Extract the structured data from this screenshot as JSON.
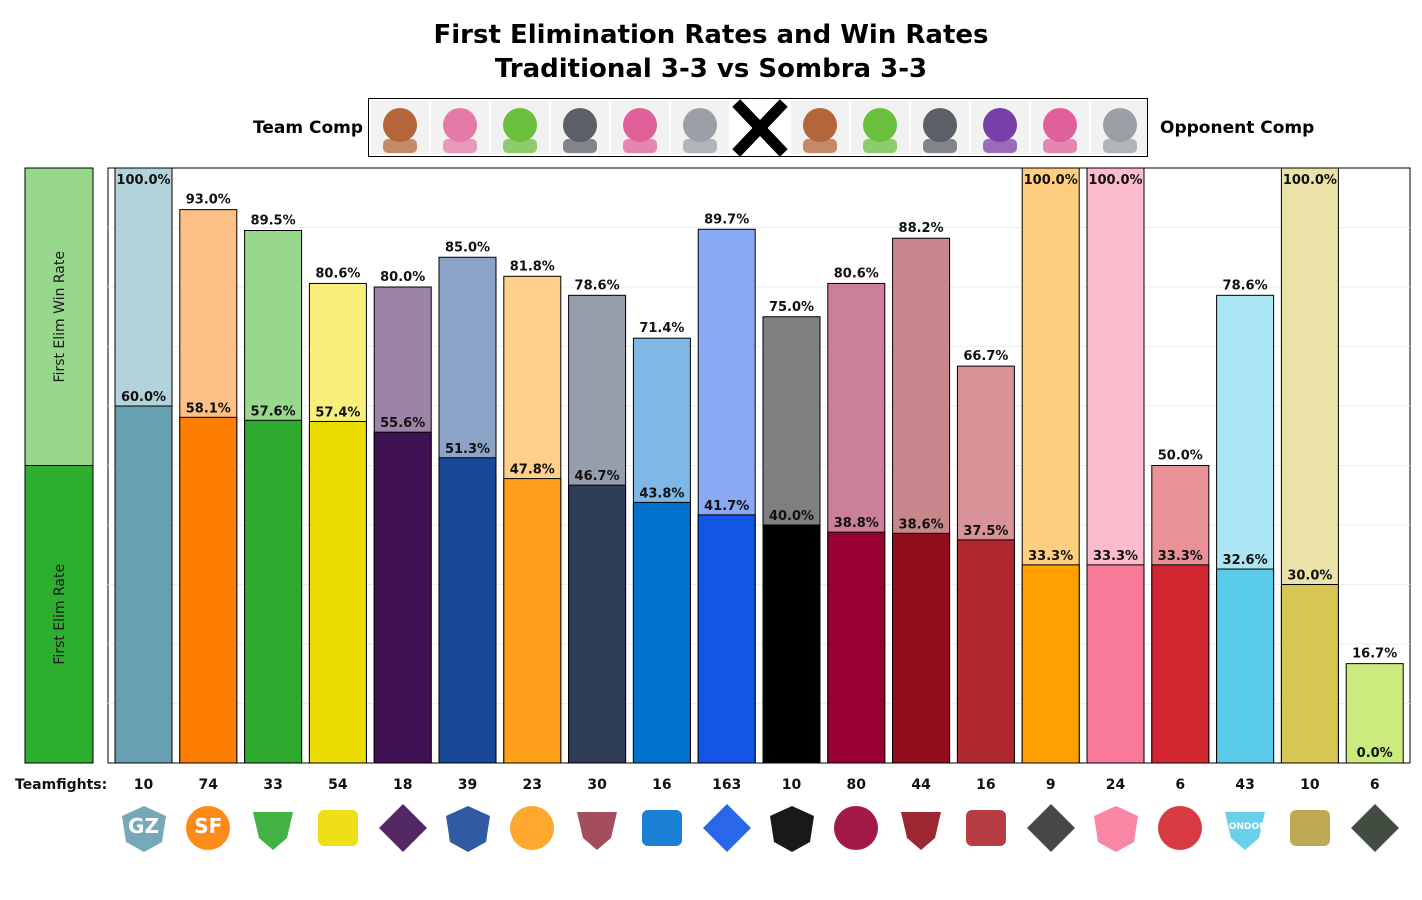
{
  "title_line1": "First Elimination Rates and Win Rates",
  "title_line2": "Traditional 3-3 vs Sombra 3-3",
  "team_comp_label": "Team Comp",
  "opponent_comp_label": "Opponent Comp",
  "team_comp_heroes": [
    "brigitte",
    "dva",
    "lucio",
    "reinhardt",
    "zarya",
    "zenyatta"
  ],
  "opponent_comp_heroes": [
    "brigitte",
    "lucio",
    "reinhardt",
    "sombra",
    "zarya",
    "zenyatta"
  ],
  "vs_icon": "x-icon",
  "legend": {
    "top_label": "First Elim Win Rate",
    "bottom_label": "First Elim Rate",
    "top_color": "#98d88c",
    "bottom_color": "#2eae2e"
  },
  "teamfights_label": "Teamfights:",
  "chart_data": {
    "type": "bar",
    "title": "First Elimination Rates and Win Rates",
    "subtitle": "Traditional 3-3 vs Sombra 3-3",
    "ylim": [
      0,
      100
    ],
    "categories": [
      "GZ",
      "SF",
      "VAN",
      "LAV",
      "LAG",
      "NYX",
      "PHI",
      "PAR",
      "DAL",
      "BOS",
      "TOR",
      "WAS",
      "ATL",
      "MAY",
      "HZS",
      "SHD",
      "SHA",
      "LON",
      "SEO",
      "HOU"
    ],
    "series": [
      {
        "name": "First Elim Rate",
        "values": [
          60.0,
          58.1,
          57.6,
          57.4,
          55.6,
          51.3,
          47.8,
          46.7,
          43.8,
          41.7,
          40.0,
          38.8,
          38.6,
          37.5,
          33.3,
          33.3,
          33.3,
          32.6,
          30.0,
          0.0
        ]
      },
      {
        "name": "First Elim Win Rate",
        "values": [
          100.0,
          93.0,
          89.5,
          80.6,
          80.0,
          85.0,
          81.8,
          78.6,
          71.4,
          89.7,
          75.0,
          80.6,
          88.2,
          66.7,
          100.0,
          100.0,
          50.0,
          78.6,
          100.0,
          16.7
        ]
      }
    ],
    "teamfights": [
      10,
      74,
      33,
      54,
      18,
      39,
      23,
      30,
      16,
      163,
      10,
      80,
      44,
      16,
      9,
      24,
      6,
      43,
      10,
      6
    ],
    "colors": [
      "#679fb1",
      "#fd7e00",
      "#2eaa2e",
      "#ecdc00",
      "#3e1152",
      "#194897",
      "#ff9f1a",
      "#2f3d58",
      "#0072ce",
      "#1355e5",
      "#000000",
      "#990034",
      "#910f1c",
      "#af272f",
      "#ffa000",
      "#f9799b",
      "#d22630",
      "#59cbe8",
      "#d6c653",
      "#97d700"
    ],
    "light_colors": [
      "#b2d3dc",
      "#fdc087",
      "#98d88c",
      "#f7ee7c",
      "#9b84a5",
      "#8ca3c8",
      "#ffcf8c",
      "#979eab",
      "#7fb8e6",
      "#89aaf2",
      "#7f7f7f",
      "#cc7f99",
      "#c8878d",
      "#d79397",
      "#ffcf7f",
      "#fcbccd",
      "#e89297",
      "#acE5f3",
      "#eae2a9",
      "#cbeb7f"
    ],
    "legend_position": "left"
  },
  "logos": [
    {
      "icon": "guangzhou-charge-logo",
      "text": "GZ",
      "color": "#679fb1"
    },
    {
      "icon": "sf-shock-logo",
      "text": "SF",
      "color": "#fd7e00"
    },
    {
      "icon": "vancouver-titans-logo",
      "text": "",
      "color": "#2eaa2e"
    },
    {
      "icon": "la-valiant-logo",
      "text": "",
      "color": "#ecdc00"
    },
    {
      "icon": "la-gladiators-logo",
      "text": "",
      "color": "#3e1152"
    },
    {
      "icon": "nyxl-logo",
      "text": "",
      "color": "#194897"
    },
    {
      "icon": "philadelphia-fusion-logo",
      "text": "",
      "color": "#ff9f1a"
    },
    {
      "icon": "paris-eternal-logo",
      "text": "",
      "color": "#9a3a4a"
    },
    {
      "icon": "dallas-fuel-logo",
      "text": "",
      "color": "#0072ce"
    },
    {
      "icon": "boston-uprising-logo",
      "text": "",
      "color": "#1355e5"
    },
    {
      "icon": "toronto-defiant-logo",
      "text": "",
      "color": "#000000"
    },
    {
      "icon": "washington-justice-logo",
      "text": "",
      "color": "#990034"
    },
    {
      "icon": "atlanta-reign-logo",
      "text": "",
      "color": "#910f1c"
    },
    {
      "icon": "florida-mayhem-logo",
      "text": "",
      "color": "#af272f"
    },
    {
      "icon": "chengdu-hunters-logo",
      "text": "",
      "color": "#333333"
    },
    {
      "icon": "hangzhou-spark-logo",
      "text": "",
      "color": "#f9799b"
    },
    {
      "icon": "shanghai-dragons-logo",
      "text": "",
      "color": "#d22630"
    },
    {
      "icon": "london-spitfire-logo",
      "text": "LONDON",
      "color": "#59cbe8"
    },
    {
      "icon": "seoul-dynasty-logo",
      "text": "",
      "color": "#b8a040"
    },
    {
      "icon": "houston-outlaws-logo",
      "text": "",
      "color": "#2d3a2d"
    }
  ]
}
